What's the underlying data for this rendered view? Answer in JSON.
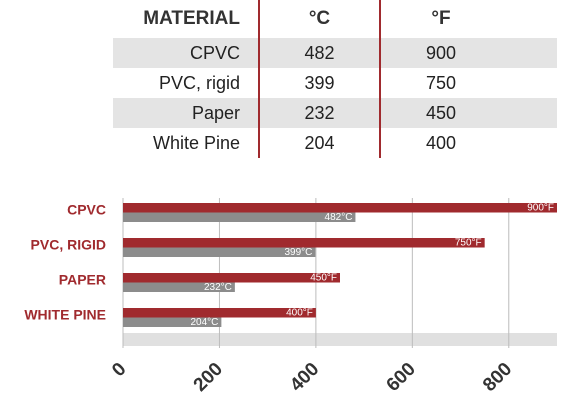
{
  "table": {
    "headers": [
      "MATERIAL",
      "°C",
      "°F"
    ],
    "rows": [
      {
        "material": "CPVC",
        "c": "482",
        "f": "900"
      },
      {
        "material": "PVC, rigid",
        "c": "399",
        "f": "750"
      },
      {
        "material": "Paper",
        "c": "232",
        "f": "450"
      },
      {
        "material": "White Pine",
        "c": "204",
        "f": "400"
      }
    ]
  },
  "colors": {
    "fahrenheit_bar": "#a02a2e",
    "celsius_bar": "#8c8c8c",
    "category_label": "#a02a2e",
    "axis_band": "#e0e0e0",
    "grid": "#bcbcbc"
  },
  "chart_data": {
    "type": "bar",
    "orientation": "horizontal",
    "categories": [
      "CPVC",
      "PVC, RIGID",
      "PAPER",
      "WHITE PINE"
    ],
    "series": [
      {
        "values": [
          900,
          750,
          450,
          400
        ],
        "labels": [
          "900°F",
          "750°F",
          "450°F",
          "400°F"
        ]
      },
      {
        "values": [
          482,
          399,
          232,
          204
        ],
        "labels": [
          "482°C",
          "399°C",
          "232°C",
          "204°C"
        ]
      }
    ],
    "xlim": [
      0,
      900
    ],
    "xticks": [
      0,
      200,
      400,
      600,
      800
    ],
    "tick_labels": [
      "0",
      "200",
      "400",
      "600",
      "800"
    ],
    "grid": true,
    "title": "",
    "xlabel": "",
    "ylabel": ""
  }
}
